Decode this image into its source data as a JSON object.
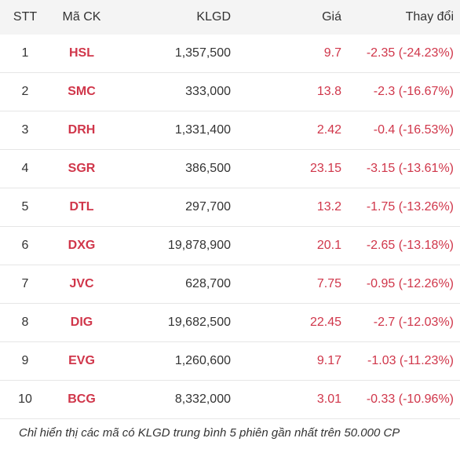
{
  "headers": {
    "stt": "STT",
    "code": "Mã CK",
    "volume": "KLGD",
    "price": "Giá",
    "change": "Thay đổi"
  },
  "rows": [
    {
      "stt": "1",
      "code": "HSL",
      "volume": "1,357,500",
      "price": "9.7",
      "change": "-2.35 (-24.23%)"
    },
    {
      "stt": "2",
      "code": "SMC",
      "volume": "333,000",
      "price": "13.8",
      "change": "-2.3 (-16.67%)"
    },
    {
      "stt": "3",
      "code": "DRH",
      "volume": "1,331,400",
      "price": "2.42",
      "change": "-0.4 (-16.53%)"
    },
    {
      "stt": "4",
      "code": "SGR",
      "volume": "386,500",
      "price": "23.15",
      "change": "-3.15 (-13.61%)"
    },
    {
      "stt": "5",
      "code": "DTL",
      "volume": "297,700",
      "price": "13.2",
      "change": "-1.75 (-13.26%)"
    },
    {
      "stt": "6",
      "code": "DXG",
      "volume": "19,878,900",
      "price": "20.1",
      "change": "-2.65 (-13.18%)"
    },
    {
      "stt": "7",
      "code": "JVC",
      "volume": "628,700",
      "price": "7.75",
      "change": "-0.95 (-12.26%)"
    },
    {
      "stt": "8",
      "code": "DIG",
      "volume": "19,682,500",
      "price": "22.45",
      "change": "-2.7 (-12.03%)"
    },
    {
      "stt": "9",
      "code": "EVG",
      "volume": "1,260,600",
      "price": "9.17",
      "change": "-1.03 (-11.23%)"
    },
    {
      "stt": "10",
      "code": "BCG",
      "volume": "8,332,000",
      "price": "3.01",
      "change": "-0.33 (-10.96%)"
    }
  ],
  "footnote": "Chỉ hiển thị các mã có KLGD trung bình 5 phiên gần nhất trên 50.000 CP",
  "colors": {
    "down": "#d0364a",
    "header_bg": "#f4f4f4",
    "divider": "#e6e6e6"
  }
}
